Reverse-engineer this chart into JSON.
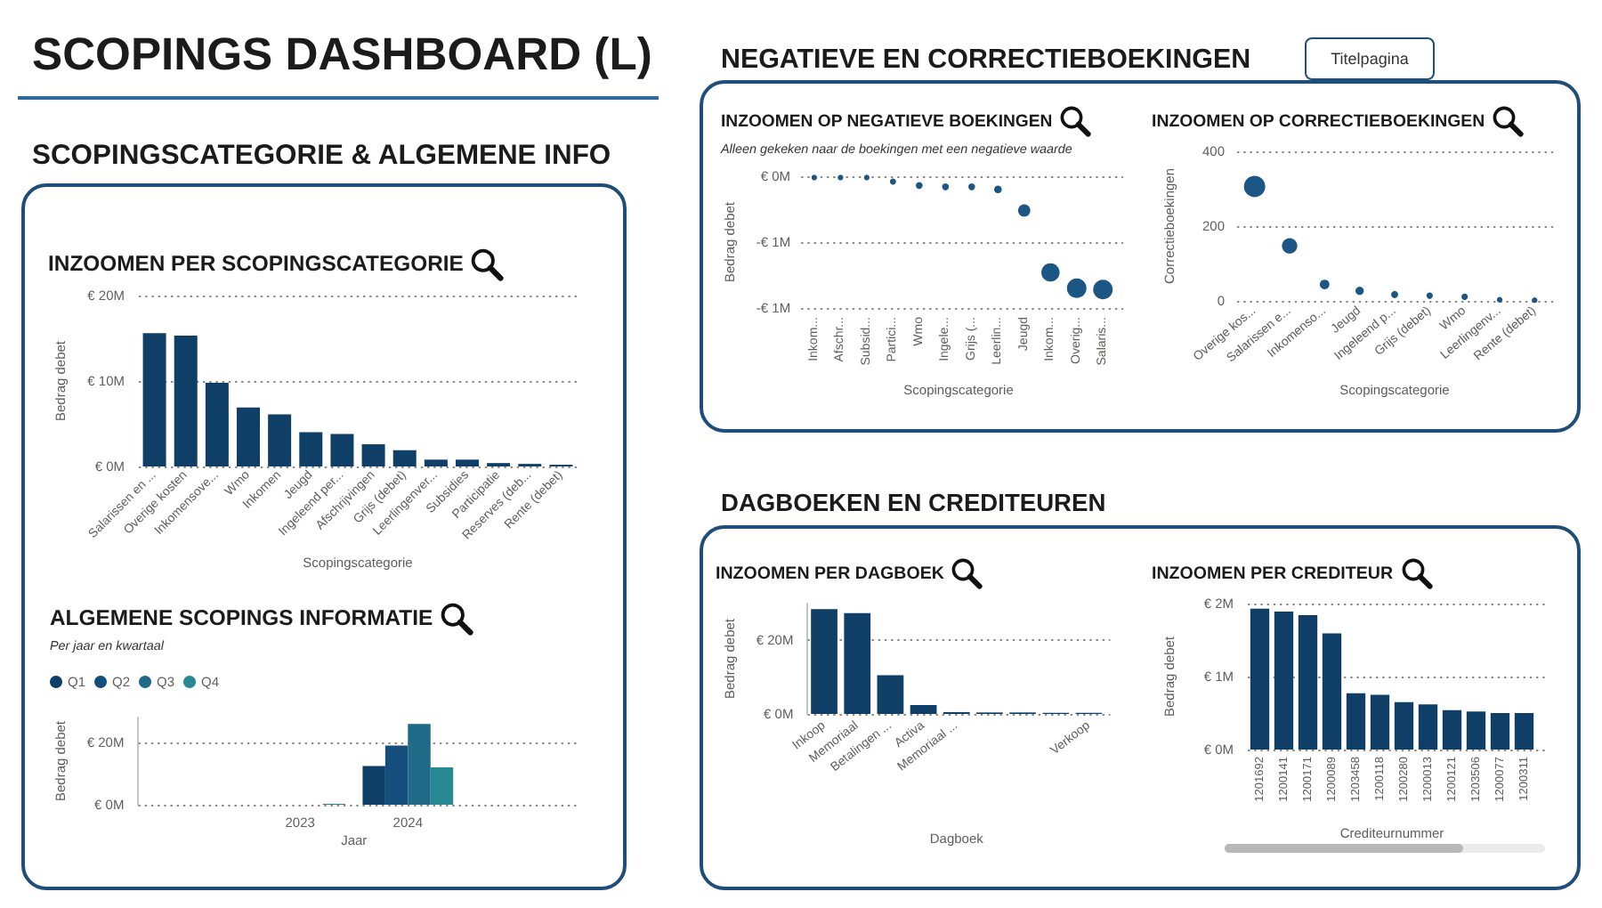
{
  "chart_data": [
    {
      "type": "other",
      "title": "SCOPINGS DASHBOARD (L)",
      "annotations": [
        "SCOPINGSCATEGORIE & ALGEMENE INFO",
        "NEGATIEVE EN CORRECTIEBOEKINGEN",
        "DAGBOEKEN EN CREDITEUREN",
        "Titelpagina"
      ]
    },
    {
      "type": "bar",
      "title": "INZOOMEN PER SCOPINGSCATEGORIE",
      "xlabel": "Scopingscategorie",
      "ylabel": "Bedrag debet",
      "categories": [
        "Salarissen en ...",
        "Overige kosten",
        "Inkomensove...",
        "Wmo",
        "Inkomen",
        "Jeugd",
        "Ingeleend per...",
        "Afschrijvingen",
        "Grijs (debet)",
        "Leerlingenver...",
        "Subsidies",
        "Participatie",
        "Reserves (deb...",
        "Rente (debet)"
      ],
      "values": [
        15.6,
        15.3,
        9.8,
        6.9,
        6.1,
        4.0,
        3.8,
        2.6,
        1.9,
        0.8,
        0.8,
        0.4,
        0.3,
        0.2
      ],
      "color": "#0f3f67",
      "ylim": [
        0,
        20
      ],
      "yticks": [
        {
          "value": 0,
          "label": "€ 0M"
        },
        {
          "value": 10,
          "label": "€ 10M"
        },
        {
          "value": 20,
          "label": "€ 20M"
        }
      ],
      "grid": "y"
    },
    {
      "type": "bar",
      "title": "ALGEMENE SCOPINGS INFORMATIE",
      "subtitle": "Per jaar en kwartaal",
      "xlabel": "Jaar",
      "ylabel": "Bedrag debet",
      "categories": [
        "2023",
        "2024"
      ],
      "series": [
        {
          "name": "Q1",
          "color": "#0f3e66",
          "values": [
            null,
            12.4
          ]
        },
        {
          "name": "Q2",
          "color": "#134e7c",
          "values": [
            null,
            19.0
          ]
        },
        {
          "name": "Q3",
          "color": "#1e6a87",
          "values": [
            null,
            25.9
          ]
        },
        {
          "name": "Q4",
          "color": "#288894",
          "values": [
            0.3,
            12.0
          ]
        }
      ],
      "ylim": [
        0,
        28
      ],
      "yticks": [
        {
          "value": 0,
          "label": "€ 0M"
        },
        {
          "value": 20,
          "label": "€ 20M"
        }
      ],
      "grid": "y",
      "legend": "top left"
    },
    {
      "type": "bubble",
      "title": "INZOOMEN OP NEGATIEVE BOEKINGEN",
      "subtitle": "Alleen gekeken naar de boekingen met een negatieve waarde",
      "xlabel": "Scopingscategorie",
      "ylabel": "Bedrag debet",
      "categories": [
        "Inkom...",
        "Afschr...",
        "Subsid...",
        "Partici...",
        "Wmo",
        "Ingele...",
        "Grijs (...",
        "Leerlin...",
        "Jeugd",
        "Inkom...",
        "Overig...",
        "Salaris..."
      ],
      "values": [
        -0.01,
        -0.01,
        -0.01,
        -0.04,
        -0.07,
        -0.08,
        -0.08,
        -0.1,
        -0.26,
        -0.73,
        -0.85,
        -0.86
      ],
      "sizes": [
        0.08,
        0.08,
        0.08,
        0.1,
        0.12,
        0.12,
        0.12,
        0.15,
        0.39,
        0.88,
        1,
        1
      ],
      "color": "#1b5685",
      "ylim": [
        -1,
        0
      ],
      "yticks": [
        {
          "value": -1,
          "label": "-€ 1M"
        },
        {
          "value": -0.5,
          "label": "-€ 1M"
        },
        {
          "value": 0,
          "label": "€ 0M"
        }
      ],
      "grid": "y"
    },
    {
      "type": "bubble",
      "title": "INZOOMEN OP CORRECTIEBOEKINGEN",
      "xlabel": "Scopingscategorie",
      "ylabel": "Correctieboekingen",
      "categories": [
        "Overige kos...",
        "Salarissen e...",
        "Inkomenso...",
        "Jeugd",
        "Ingeleend p...",
        "Grijs (debet)",
        "Wmo",
        "Leerlingenv...",
        "Rente (debet)"
      ],
      "values": [
        306,
        147,
        44,
        27,
        17,
        14,
        11,
        3,
        2
      ],
      "sizes": [
        1,
        0.52,
        0.2,
        0.15,
        0.11,
        0.09,
        0.09,
        0.07,
        0.07
      ],
      "color": "#1b5685",
      "ylim": [
        0,
        400
      ],
      "yticks": [
        0,
        200,
        400
      ],
      "grid": "y"
    },
    {
      "type": "bar",
      "title": "INZOOMEN PER DAGBOEK",
      "xlabel": "Dagboek",
      "ylabel": "Bedrag debet",
      "categories": [
        "Inkoop",
        "Memoriaal",
        "Betalingen ...",
        "Activa",
        "Memoriaal ...",
        null,
        null,
        null,
        "Verkoop"
      ],
      "values": [
        28.5,
        27.4,
        10.5,
        2.4,
        0.5,
        0.4,
        0.4,
        0.3,
        0.3
      ],
      "color": "#0f3f67",
      "ylim": [
        0,
        30
      ],
      "yticks": [
        {
          "value": 0,
          "label": "€ 0M"
        },
        {
          "value": 20,
          "label": "€ 20M"
        }
      ],
      "grid": "y"
    },
    {
      "type": "bar",
      "title": "INZOOMEN PER CREDITEUR",
      "xlabel": "Crediteurnummer",
      "ylabel": "Bedrag debet",
      "categories": [
        "1201692",
        "1200141",
        "1200171",
        "1200089",
        "1203458",
        "1200118",
        "1200280",
        "1200013",
        "1200121",
        "1203506",
        "1200077",
        "1200311"
      ],
      "values": [
        1.93,
        1.89,
        1.84,
        1.59,
        0.77,
        0.75,
        0.65,
        0.62,
        0.54,
        0.52,
        0.5,
        0.5
      ],
      "color": "#0f3f67",
      "ylim": [
        0,
        2
      ],
      "yticks": [
        {
          "value": 0,
          "label": "€ 0M"
        },
        {
          "value": 1,
          "label": "€ 1M"
        },
        {
          "value": 2,
          "label": "€ 2M"
        }
      ],
      "grid": "y"
    }
  ]
}
